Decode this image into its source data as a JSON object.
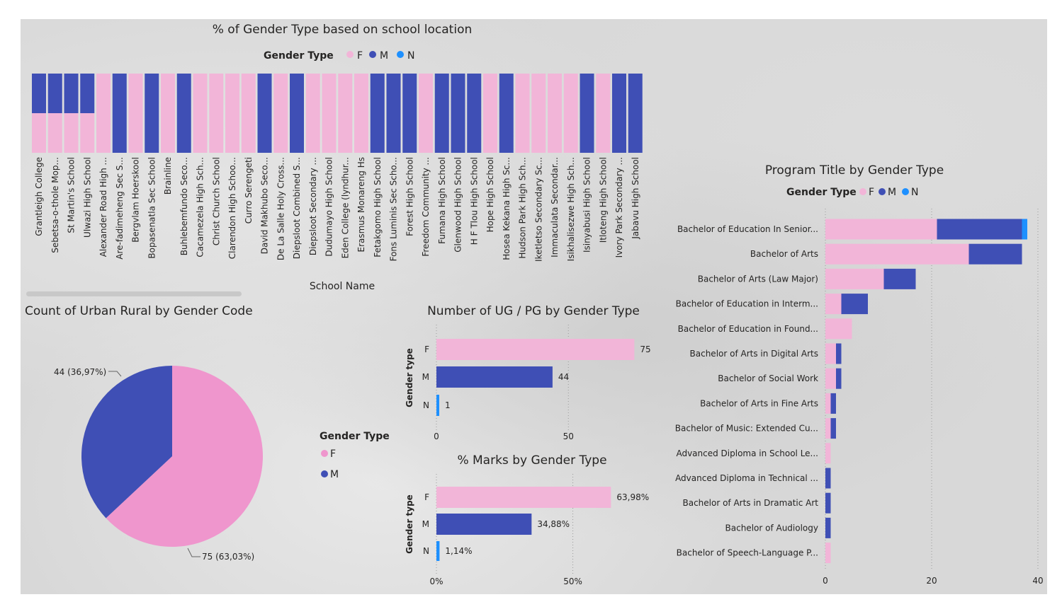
{
  "colors": {
    "F": "#f2b5d8",
    "M": "#3f4fb5",
    "N": "#1e90ff",
    "pieF": "#ef96cd"
  },
  "chart_data": [
    {
      "id": "school",
      "type": "bar",
      "stacked": "100%",
      "title": "% of Gender Type based on school location",
      "legend_title": "Gender Type",
      "legend": [
        "F",
        "M",
        "N"
      ],
      "xlabel": "School Name",
      "categories": [
        "Grantleigh College",
        "Sebetsa-o-thole Mop...",
        "St Martin's School",
        "Ulwazi High School",
        "Alexander Road High ...",
        "Are-fadimeheng Sec S...",
        "Bergvlam Hoerskool",
        "Bopasenatla Sec School",
        "Brainline",
        "Buhlebemfundo Seco...",
        "Cacamezela High Sch...",
        "Christ Church School",
        "Clarendon High Schoo...",
        "Curro Serengeti",
        "David Makhubo Seco...",
        "De La Salle Holy Cross...",
        "Diepsloot Combined S...",
        "Diepsloot Secondary ...",
        "Dudumayo High School",
        "Eden College (lyndhur...",
        "Erasmus Monareng Hs",
        "Fetakgomo High School",
        "Fons Luminis Sec Scho...",
        "Forest High School",
        "Freedom Community ...",
        "Fumana High School",
        "Glenwood High School",
        "H F Tlou High School",
        "Hope High School",
        "Hosea Kekana High Sc...",
        "Hudson Park High Sch...",
        "Iketletso Secondary Sc...",
        "Immaculata Secondar...",
        "Isikhalisezwe High Sch...",
        "Isinyabusi High School",
        "Itloteng High School",
        "Ivory Park Secondary ...",
        "Jabavu High School"
      ],
      "series": [
        {
          "name": "F",
          "values": [
            50,
            50,
            50,
            50,
            100,
            0,
            100,
            0,
            100,
            0,
            100,
            100,
            100,
            100,
            0,
            100,
            0,
            100,
            100,
            100,
            100,
            0,
            0,
            0,
            100,
            0,
            0,
            0,
            100,
            0,
            100,
            100,
            100,
            100,
            0,
            100,
            0,
            0
          ]
        },
        {
          "name": "M",
          "values": [
            50,
            50,
            50,
            50,
            0,
            100,
            0,
            100,
            0,
            100,
            0,
            0,
            0,
            0,
            100,
            0,
            100,
            0,
            0,
            0,
            0,
            100,
            100,
            100,
            0,
            100,
            100,
            100,
            0,
            100,
            0,
            0,
            0,
            0,
            100,
            0,
            100,
            100
          ]
        },
        {
          "name": "N",
          "values": [
            0,
            0,
            0,
            0,
            0,
            0,
            0,
            0,
            0,
            0,
            0,
            0,
            0,
            0,
            0,
            0,
            0,
            0,
            0,
            0,
            0,
            0,
            0,
            0,
            0,
            0,
            0,
            0,
            0,
            0,
            0,
            0,
            0,
            0,
            0,
            0,
            0,
            0
          ]
        }
      ],
      "ylim": [
        0,
        100
      ]
    },
    {
      "id": "pie",
      "type": "pie",
      "title": "Count of Urban Rural by Gender Code",
      "legend_title": "Gender Type",
      "legend": [
        "F",
        "M"
      ],
      "slices": [
        {
          "name": "F",
          "value": 75,
          "label": "75 (63,03%)"
        },
        {
          "name": "M",
          "value": 44,
          "label": "44 (36,97%)"
        }
      ]
    },
    {
      "id": "ugpg",
      "type": "bar",
      "orientation": "horizontal",
      "title": "Number of UG / PG by Gender Type",
      "ylabel": "Gender type",
      "categories": [
        "F",
        "M",
        "N"
      ],
      "values": [
        75,
        44,
        1
      ],
      "labels": [
        "75",
        "44",
        "1"
      ],
      "xticks": [
        "0",
        "50"
      ],
      "xlim": [
        0,
        80
      ]
    },
    {
      "id": "marks",
      "type": "bar",
      "orientation": "horizontal",
      "title": "% Marks by Gender Type",
      "ylabel": "Gender type",
      "categories": [
        "F",
        "M",
        "N"
      ],
      "values": [
        63.98,
        34.88,
        1.14
      ],
      "labels": [
        "63,98%",
        "34,88%",
        "1,14%"
      ],
      "xticks": [
        "0%",
        "50%"
      ],
      "xlim": [
        0,
        67
      ]
    },
    {
      "id": "program",
      "type": "bar",
      "orientation": "horizontal",
      "stacked": true,
      "title": "Program Title by Gender Type",
      "legend_title": "Gender Type",
      "legend": [
        "F",
        "M",
        "N"
      ],
      "categories": [
        "Bachelor of Education In Senior...",
        "Bachelor of Arts",
        "Bachelor of Arts (Law Major)",
        "Bachelor of Education in Interm...",
        "Bachelor of Education in Found...",
        "Bachelor of Arts in Digital Arts",
        "Bachelor of Social Work",
        "Bachelor of Arts in Fine Arts",
        "Bachelor of Music: Extended Cu...",
        "Advanced Diploma in School Le...",
        "Advanced Diploma in Technical ...",
        "Bachelor of Arts in Dramatic Art",
        "Bachelor of Audiology",
        "Bachelor of Speech-Language P..."
      ],
      "series": [
        {
          "name": "F",
          "values": [
            21,
            27,
            11,
            3,
            5,
            2,
            2,
            1,
            1,
            1,
            0,
            0,
            0,
            1
          ]
        },
        {
          "name": "M",
          "values": [
            16,
            10,
            6,
            5,
            0,
            1,
            1,
            1,
            1,
            0,
            1,
            1,
            1,
            0
          ]
        },
        {
          "name": "N",
          "values": [
            1,
            0,
            0,
            0,
            0,
            0,
            0,
            0,
            0,
            0,
            0,
            0,
            0,
            0
          ]
        }
      ],
      "xticks": [
        "0",
        "20",
        "40"
      ],
      "xlim": [
        0,
        40
      ]
    }
  ]
}
